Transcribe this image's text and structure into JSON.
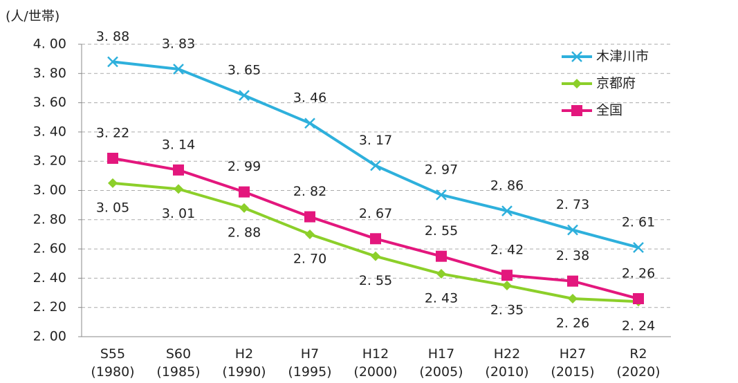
{
  "chart_data": {
    "type": "line",
    "y_label": "(人/世帯)",
    "categories": [
      "S55\n(1980)",
      "S60\n(1985)",
      "H2\n(1990)",
      "H7\n(1995)",
      "H12\n(2000)",
      "H17\n(2005)",
      "H22\n(2010)",
      "H27\n(2015)",
      "R2\n(2020)"
    ],
    "series": [
      {
        "name": "木津川市",
        "color": "#2eb0dc",
        "marker": "x",
        "label_position": "above",
        "values": [
          3.88,
          3.83,
          3.65,
          3.46,
          3.17,
          2.97,
          2.86,
          2.73,
          2.61
        ],
        "value_labels": [
          "3. 88",
          "3. 83",
          "3. 65",
          "3. 46",
          "3. 17",
          "2. 97",
          "2. 86",
          "2. 73",
          "2. 61"
        ]
      },
      {
        "name": "京都府",
        "color": "#8ccf2a",
        "marker": "diamond",
        "label_position": "below",
        "values": [
          3.05,
          3.01,
          2.88,
          2.7,
          2.55,
          2.43,
          2.35,
          2.26,
          2.24
        ],
        "value_labels": [
          "3. 05",
          "3. 01",
          "2. 88",
          "2. 70",
          "2. 55",
          "2. 43",
          "2. 35",
          "2. 26",
          "2. 24"
        ]
      },
      {
        "name": "全国",
        "color": "#e3177d",
        "marker": "square",
        "label_position": "above",
        "values": [
          3.22,
          3.14,
          2.99,
          2.82,
          2.67,
          2.55,
          2.42,
          2.38,
          2.26
        ],
        "value_labels": [
          "3. 22",
          "3. 14",
          "2. 99",
          "2. 82",
          "2. 67",
          "2. 55",
          "2. 42",
          "2. 38",
          "2. 26"
        ]
      }
    ],
    "ylim": [
      2,
      4
    ],
    "yticks": [
      {
        "value": 2,
        "label": "2. 00"
      },
      {
        "value": 2.2,
        "label": "2. 20"
      },
      {
        "value": 2.4,
        "label": "2. 40"
      },
      {
        "value": 2.6,
        "label": "2. 60"
      },
      {
        "value": 2.8,
        "label": "2. 80"
      },
      {
        "value": 3,
        "label": "3. 00"
      },
      {
        "value": 3.2,
        "label": "3. 20"
      },
      {
        "value": 3.4,
        "label": "3. 40"
      },
      {
        "value": 3.6,
        "label": "3. 60"
      },
      {
        "value": 3.8,
        "label": "3. 80"
      },
      {
        "value": 4,
        "label": "4. 00"
      }
    ],
    "grid": true,
    "legend": "upper right"
  }
}
